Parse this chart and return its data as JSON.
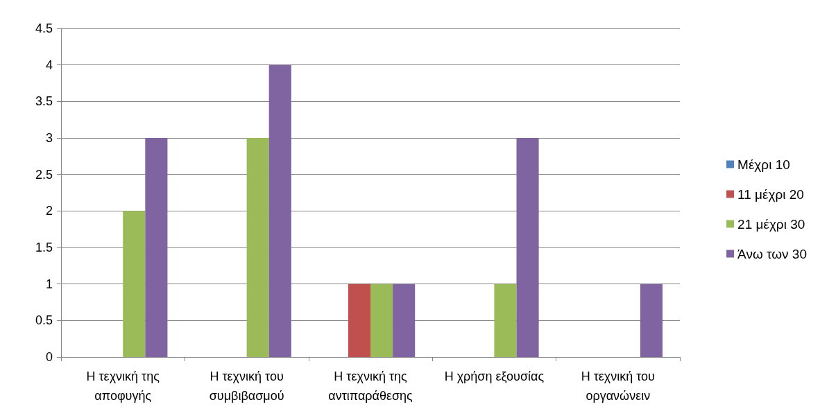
{
  "chart_data": {
    "type": "bar",
    "categories": [
      "Η τεχνική της αποφυγής",
      "Η τεχνική του συμβιβασμού",
      "Η τεχνική της αντιπαράθεσης",
      "Η χρήση εξουσίας",
      "Η τεχνική του οργανώνειν"
    ],
    "series": [
      {
        "name": "Μέχρι 10",
        "color": "#4f81bd",
        "values": [
          0,
          0,
          0,
          0,
          0
        ]
      },
      {
        "name": "11 μέχρι 20",
        "color": "#c0504d",
        "values": [
          0,
          0,
          1,
          0,
          0
        ]
      },
      {
        "name": "21 μέχρι 30",
        "color": "#9bbb59",
        "values": [
          2,
          3,
          1,
          1,
          0
        ]
      },
      {
        "name": "Άνω των 30",
        "color": "#8064a2",
        "values": [
          3,
          4,
          1,
          3,
          1
        ]
      }
    ],
    "ylim": [
      0,
      4.5
    ],
    "yticks": [
      0,
      0.5,
      1,
      1.5,
      2,
      2.5,
      3,
      3.5,
      4,
      4.5
    ],
    "grid": "y",
    "legend": "right"
  }
}
